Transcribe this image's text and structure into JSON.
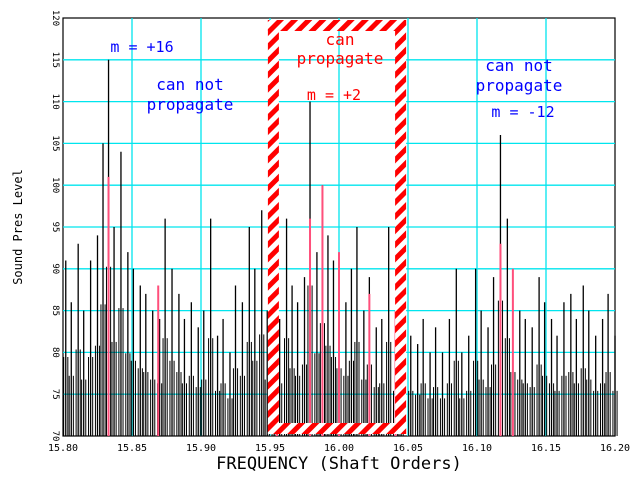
{
  "chart_data": {
    "type": "line",
    "xlabel": "FREQUENCY (Shaft Orders)",
    "ylabel": "Sound Pres Level",
    "xlim": [
      15.8,
      16.2
    ],
    "ylim": [
      70,
      120
    ],
    "x_ticks": [
      "15.80",
      "15.85",
      "15.90",
      "15.95",
      "16.00",
      "16.05",
      "16.10",
      "16.15",
      "16.20"
    ],
    "x_tick_values": [
      15.8,
      15.85,
      15.9,
      15.95,
      16.0,
      16.05,
      16.1,
      16.15,
      16.2
    ],
    "y_ticks": [
      "70",
      "75",
      "80",
      "85",
      "90",
      "95",
      "100",
      "105",
      "110",
      "115",
      "120"
    ],
    "y_tick_values": [
      70,
      75,
      80,
      85,
      90,
      95,
      100,
      105,
      110,
      115,
      120
    ],
    "grid": true,
    "grid_color": "#00e5ee",
    "series": [
      {
        "color": "#000000",
        "x": [
          15.802,
          15.806,
          15.811,
          15.815,
          15.82,
          15.825,
          15.829,
          15.833,
          15.837,
          15.842,
          15.847,
          15.851,
          15.856,
          15.86,
          15.865,
          15.87,
          15.874,
          15.879,
          15.884,
          15.888,
          15.893,
          15.898,
          15.902,
          15.907,
          15.912,
          15.916,
          15.921,
          15.925,
          15.93,
          15.935,
          15.939,
          15.944,
          15.948,
          15.953,
          15.957,
          15.962,
          15.966,
          15.97,
          15.975,
          15.979,
          15.984,
          15.988,
          15.992,
          15.996,
          16.0,
          16.005,
          16.009,
          16.013,
          16.018,
          16.022,
          16.027,
          16.031,
          16.036,
          16.041,
          16.045,
          16.052,
          16.057,
          16.061,
          16.066,
          16.07,
          16.075,
          16.08,
          16.085,
          16.089,
          16.094,
          16.099,
          16.103,
          16.108,
          16.112,
          16.117,
          16.122,
          16.126,
          16.131,
          16.135,
          16.14,
          16.145,
          16.149,
          16.154,
          16.158,
          16.163,
          16.168,
          16.172,
          16.177,
          16.181,
          16.186,
          16.191,
          16.195,
          16.2
        ],
        "values": [
          91,
          86,
          93,
          85,
          91,
          94,
          105,
          115,
          95,
          104,
          92,
          90,
          88,
          87,
          85,
          84,
          96,
          90,
          87,
          84,
          86,
          83,
          85,
          96,
          82,
          84,
          80,
          88,
          86,
          95,
          90,
          97,
          85,
          83,
          84,
          96,
          88,
          86,
          89,
          110,
          92,
          100,
          94,
          91,
          88,
          86,
          90,
          95,
          85,
          89,
          83,
          84,
          95,
          82,
          87,
          82,
          81,
          84,
          80,
          83,
          80,
          84,
          90,
          80,
          82,
          90,
          85,
          83,
          89,
          106,
          96,
          87,
          85,
          84,
          83,
          89,
          86,
          84,
          82,
          86,
          87,
          84,
          88,
          85,
          82,
          84,
          87,
          82
        ]
      },
      {
        "color": "#ff4f7b",
        "x": [
          15.833,
          15.869,
          15.955,
          15.979,
          15.988,
          16.0,
          16.022,
          16.041,
          16.117,
          16.126
        ],
        "values": [
          101,
          88,
          84,
          96,
          100,
          92,
          87,
          85,
          93,
          90
        ]
      }
    ],
    "annotations": [
      {
        "text": "m = +16",
        "color": "#0000ff"
      },
      {
        "text": "can not",
        "color": "#0000ff"
      },
      {
        "text": "propagate",
        "color": "#0000ff"
      },
      {
        "text": "can",
        "color": "#ff0000"
      },
      {
        "text": "propagate",
        "color": "#ff0000"
      },
      {
        "text": "m = +2",
        "color": "#ff0000"
      },
      {
        "text": "can not",
        "color": "#0000ff"
      },
      {
        "text": "propagate",
        "color": "#0000ff"
      },
      {
        "text": "m = -12",
        "color": "#0000ff"
      }
    ],
    "highlight_region": {
      "x_from": 15.955,
      "x_to": 16.045,
      "style": "red-white hatched border"
    }
  }
}
